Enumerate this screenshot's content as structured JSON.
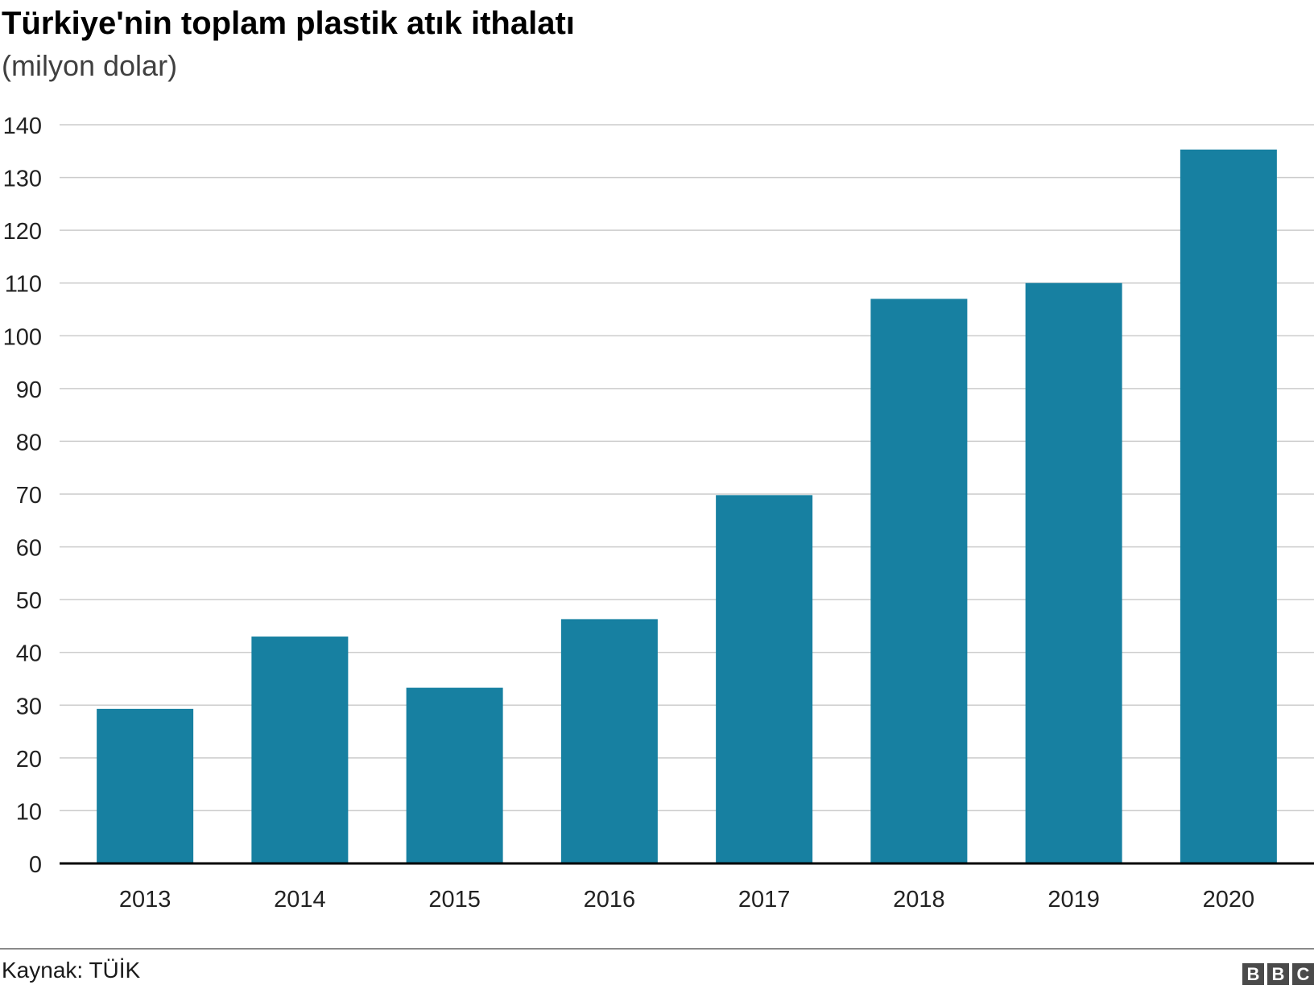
{
  "title": "Türkiye'nin toplam plastik atık ithalatı",
  "subtitle": "(milyon dolar)",
  "source": "Kaynak: TÜİK",
  "logo": [
    "B",
    "B",
    "C"
  ],
  "colors": {
    "bar": "#1780a1",
    "grid": "#cccccc",
    "axis": "#000000",
    "text": "#222222"
  },
  "chart_data": {
    "type": "bar",
    "categories": [
      "2013",
      "2014",
      "2015",
      "2016",
      "2017",
      "2018",
      "2019",
      "2020"
    ],
    "values": [
      29.3,
      43.0,
      33.3,
      46.3,
      69.8,
      107.0,
      110.0,
      135.3
    ],
    "ylim": [
      0,
      140
    ],
    "yticks": [
      0,
      10,
      20,
      30,
      40,
      50,
      60,
      70,
      80,
      90,
      100,
      110,
      120,
      130,
      140
    ],
    "grid": true,
    "legend": "none"
  }
}
